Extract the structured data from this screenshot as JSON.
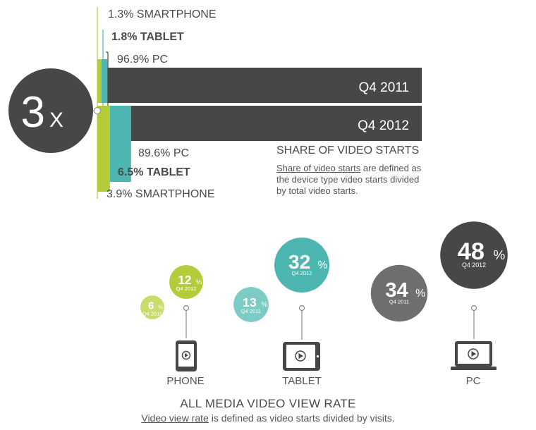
{
  "colors": {
    "smartphone": "#b5cc3a",
    "tablet": "#4db6b0",
    "pc": "#474747",
    "pc_light": "#6f6f6f",
    "smartphone_light": "#c9db6a",
    "tablet_light": "#7ccbc5"
  },
  "multiplier": {
    "number": "3",
    "suffix": "X"
  },
  "share": {
    "title": "SHARE OF VIDEO STARTS",
    "term": "Share of video starts",
    "definition": " are defined as the device type video starts divided by total video starts."
  },
  "view_rate": {
    "title": "ALL MEDIA VIDEO VIEW RATE",
    "term": "Video view rate",
    "definition": " is defined as video starts divided by visits."
  },
  "devices": {
    "phone": "PHONE",
    "tablet": "TABLET",
    "pc": "PC"
  },
  "chart_data": [
    {
      "type": "bar",
      "title": "SHARE OF VIDEO STARTS",
      "unit": "%",
      "stacked": true,
      "categories": [
        "Q4 2011",
        "Q4 2012"
      ],
      "series": [
        {
          "name": "SMARTPHONE",
          "values": [
            1.3,
            3.9
          ]
        },
        {
          "name": "TABLET",
          "values": [
            1.8,
            6.5
          ]
        },
        {
          "name": "PC",
          "values": [
            96.9,
            89.6
          ]
        }
      ],
      "labels_2011": [
        "1.3% SMARTPHONE",
        "1.8% TABLET",
        "96.9% PC"
      ],
      "labels_2012": [
        "89.6% PC",
        "6.5% TABLET",
        "3.9% SMARTPHONE"
      ]
    },
    {
      "type": "scatter",
      "title": "ALL MEDIA VIDEO VIEW RATE",
      "unit": "%",
      "categories": [
        "PHONE",
        "TABLET",
        "PC"
      ],
      "series": [
        {
          "name": "Q4 2011",
          "values": [
            6,
            13,
            34
          ]
        },
        {
          "name": "Q4 2012",
          "values": [
            12,
            32,
            48
          ]
        }
      ]
    }
  ]
}
